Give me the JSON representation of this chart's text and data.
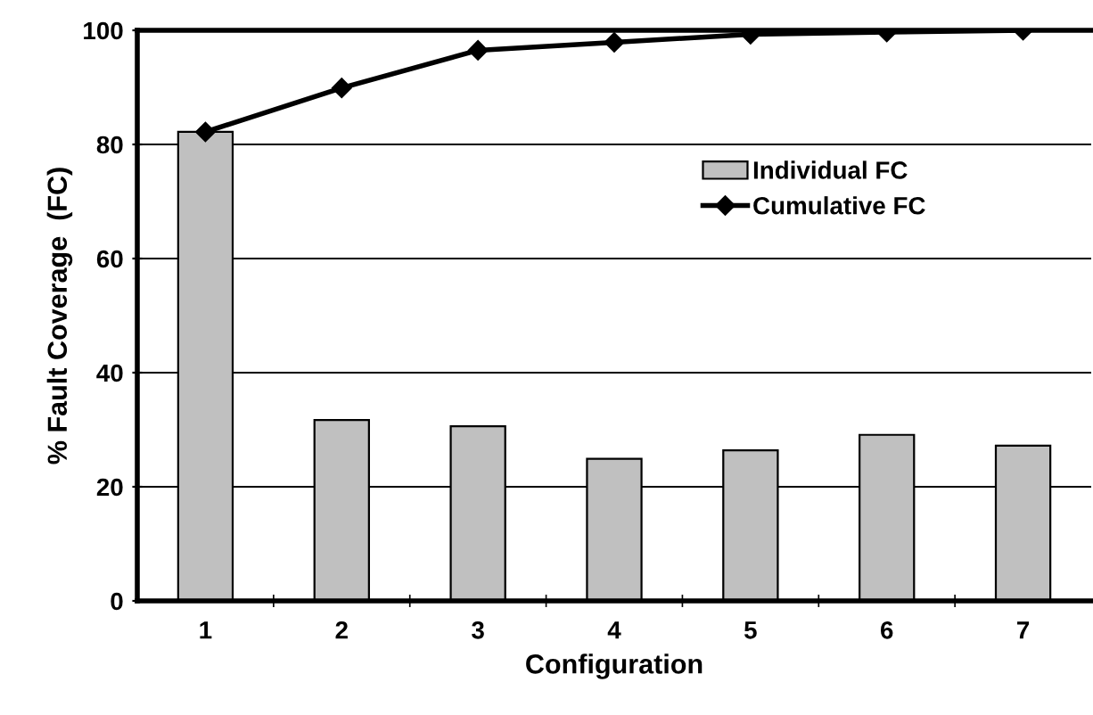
{
  "chart_data": {
    "type": "bar",
    "xlabel": "Configuration",
    "ylabel": "% Fault Coverage  (FC)",
    "categories": [
      "1",
      "2",
      "3",
      "4",
      "5",
      "6",
      "7"
    ],
    "series": [
      {
        "name": "Individual FC",
        "color": "#c0c0c0",
        "values": [
          82.2,
          31.7,
          30.6,
          24.9,
          26.4,
          29.1,
          27.2
        ]
      },
      {
        "name": "Cumulative FC",
        "type": "line",
        "color": "#000000",
        "marker": "diamond",
        "values": [
          82.2,
          89.9,
          96.5,
          97.9,
          99.3,
          99.7,
          100
        ]
      }
    ],
    "ylim": [
      0,
      100
    ],
    "yticks": [
      0,
      20,
      40,
      60,
      80,
      100
    ],
    "grid": "y",
    "legend": "right"
  }
}
